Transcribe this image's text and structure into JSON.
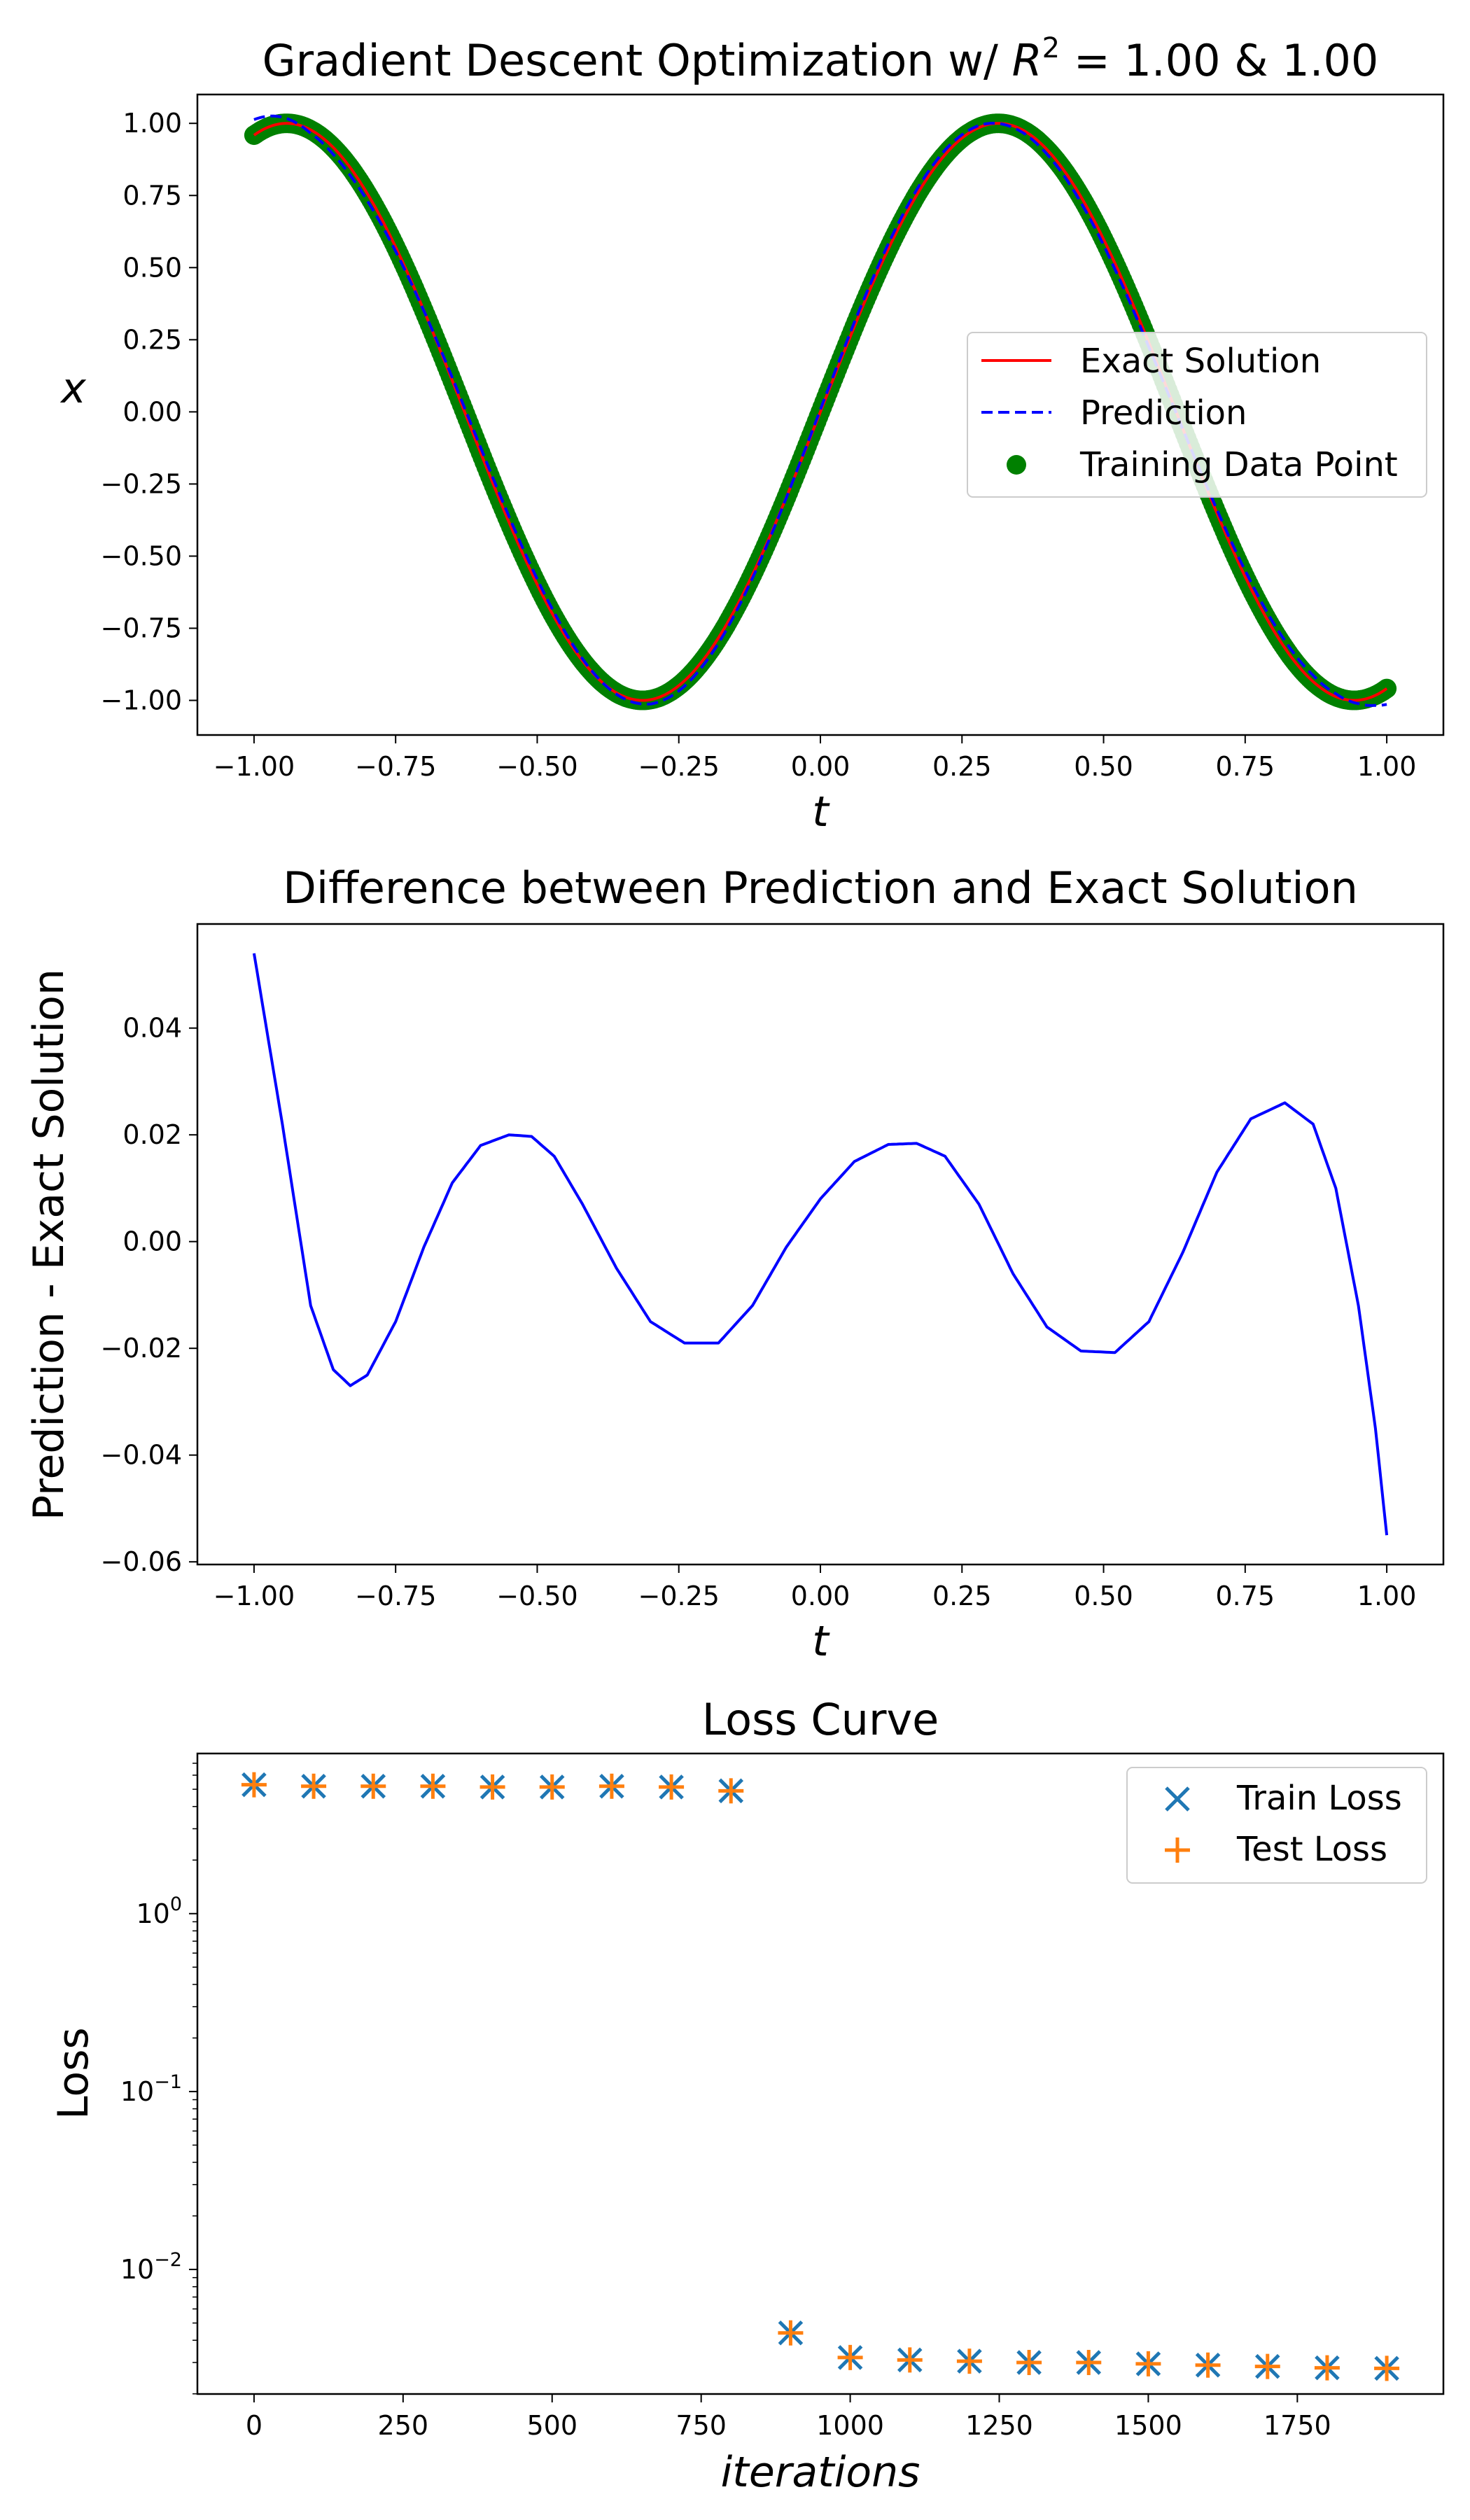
{
  "chart_data": [
    {
      "type": "line",
      "title_prefix": "Gradient Descent Optimization w/ ",
      "title_r": "R",
      "title_sup": "2",
      "title_suffix": " = 1.00 & 1.00",
      "xlabel": "t",
      "ylabel": "x",
      "xlim": [
        -1.1,
        1.1
      ],
      "ylim": [
        -1.12,
        1.1
      ],
      "xticks": [
        -1.0,
        -0.75,
        -0.5,
        -0.25,
        0.0,
        0.25,
        0.5,
        0.75,
        1.0
      ],
      "xtick_labels": [
        "−1.00",
        "−0.75",
        "−0.50",
        "−0.25",
        "0.00",
        "0.25",
        "0.50",
        "0.75",
        "1.00"
      ],
      "yticks": [
        1.0,
        0.75,
        0.5,
        0.25,
        0.0,
        -0.25,
        -0.5,
        -0.75,
        -1.0
      ],
      "ytick_labels": [
        "1.00",
        "0.75",
        "0.50",
        "0.25",
        "0.00",
        "−0.25",
        "−0.50",
        "−0.75",
        "−1.00"
      ],
      "legend_position": "center-right",
      "series": [
        {
          "name": "Exact Solution",
          "style": "solid",
          "color": "#ff0000",
          "function": "sin(5t)"
        },
        {
          "name": "Prediction",
          "style": "dashed",
          "color": "#0000ff",
          "function": "sin(5t) + difference(t)"
        },
        {
          "name": "Training Data Point",
          "style": "markers",
          "color": "#008000",
          "function": "sin(5t)",
          "t_range": [
            -1.0,
            1.0
          ]
        }
      ]
    },
    {
      "type": "line",
      "title": "Difference between Prediction and Exact Solution",
      "xlabel": "t",
      "ylabel": "Prediction - Exact Solution",
      "xlim": [
        -1.1,
        1.1
      ],
      "ylim": [
        -0.0605,
        0.0595
      ],
      "xticks": [
        -1.0,
        -0.75,
        -0.5,
        -0.25,
        0.0,
        0.25,
        0.5,
        0.75,
        1.0
      ],
      "xtick_labels": [
        "−1.00",
        "−0.75",
        "−0.50",
        "−0.25",
        "0.00",
        "0.25",
        "0.50",
        "0.75",
        "1.00"
      ],
      "yticks": [
        0.04,
        0.02,
        0.0,
        -0.02,
        -0.04,
        -0.06
      ],
      "ytick_labels": [
        "0.04",
        "0.02",
        "0.00",
        "−0.02",
        "−0.04",
        "−0.06"
      ],
      "series": [
        {
          "name": "",
          "color": "#0000ff",
          "x": [
            -1.0,
            -0.95,
            -0.9,
            -0.86,
            -0.83,
            -0.8,
            -0.75,
            -0.7,
            -0.65,
            -0.6,
            -0.55,
            -0.51,
            -0.47,
            -0.42,
            -0.36,
            -0.3,
            -0.24,
            -0.18,
            -0.12,
            -0.06,
            0.0,
            0.06,
            0.12,
            0.17,
            0.22,
            0.28,
            0.34,
            0.4,
            0.46,
            0.52,
            0.58,
            0.64,
            0.7,
            0.76,
            0.82,
            0.87,
            0.91,
            0.95,
            0.98,
            1.0
          ],
          "y": [
            0.054,
            0.022,
            -0.012,
            -0.024,
            -0.027,
            -0.025,
            -0.015,
            -0.001,
            0.011,
            0.018,
            0.02,
            0.0197,
            0.016,
            0.007,
            -0.005,
            -0.015,
            -0.019,
            -0.019,
            -0.012,
            -0.001,
            0.008,
            0.015,
            0.0182,
            0.0184,
            0.016,
            0.007,
            -0.006,
            -0.016,
            -0.0205,
            -0.0208,
            -0.015,
            -0.002,
            0.013,
            0.023,
            0.026,
            0.022,
            0.01,
            -0.012,
            -0.035,
            -0.055
          ]
        }
      ]
    },
    {
      "type": "scatter",
      "title": "Loss Curve",
      "xlabel": "iterations",
      "ylabel": "Loss",
      "yscale": "log",
      "xlim": [
        -95,
        1995
      ],
      "ylim_log10": [
        -2.7,
        0.9
      ],
      "xticks": [
        0,
        250,
        500,
        750,
        1000,
        1250,
        1500,
        1750
      ],
      "xtick_labels": [
        "0",
        "250",
        "500",
        "750",
        "1000",
        "1250",
        "1500",
        "1750"
      ],
      "ytick_base": "10",
      "yticks": [
        {
          "value": 1,
          "exp": "0"
        },
        {
          "value": 0.1,
          "exp": "−1"
        },
        {
          "value": 0.01,
          "exp": "−2"
        }
      ],
      "legend_position": "top-right",
      "x": [
        0,
        100,
        200,
        300,
        400,
        500,
        600,
        700,
        800,
        900,
        1000,
        1100,
        1200,
        1300,
        1400,
        1500,
        1600,
        1700,
        1800,
        1900
      ],
      "series": [
        {
          "name": "Train Loss",
          "marker": "x",
          "color": "#1f77b4",
          "values": [
            5.3,
            5.2,
            5.2,
            5.2,
            5.15,
            5.15,
            5.2,
            5.15,
            4.9,
            0.0044,
            0.0032,
            0.0031,
            0.00305,
            0.003,
            0.003,
            0.00295,
            0.0029,
            0.00285,
            0.0028,
            0.00278
          ]
        },
        {
          "name": "Test Loss",
          "marker": "+",
          "color": "#ff7f0e",
          "values": [
            5.3,
            5.2,
            5.2,
            5.2,
            5.15,
            5.15,
            5.2,
            5.15,
            4.9,
            0.0044,
            0.0032,
            0.0031,
            0.00305,
            0.003,
            0.003,
            0.00295,
            0.0029,
            0.00285,
            0.0028,
            0.00278
          ]
        }
      ]
    }
  ]
}
